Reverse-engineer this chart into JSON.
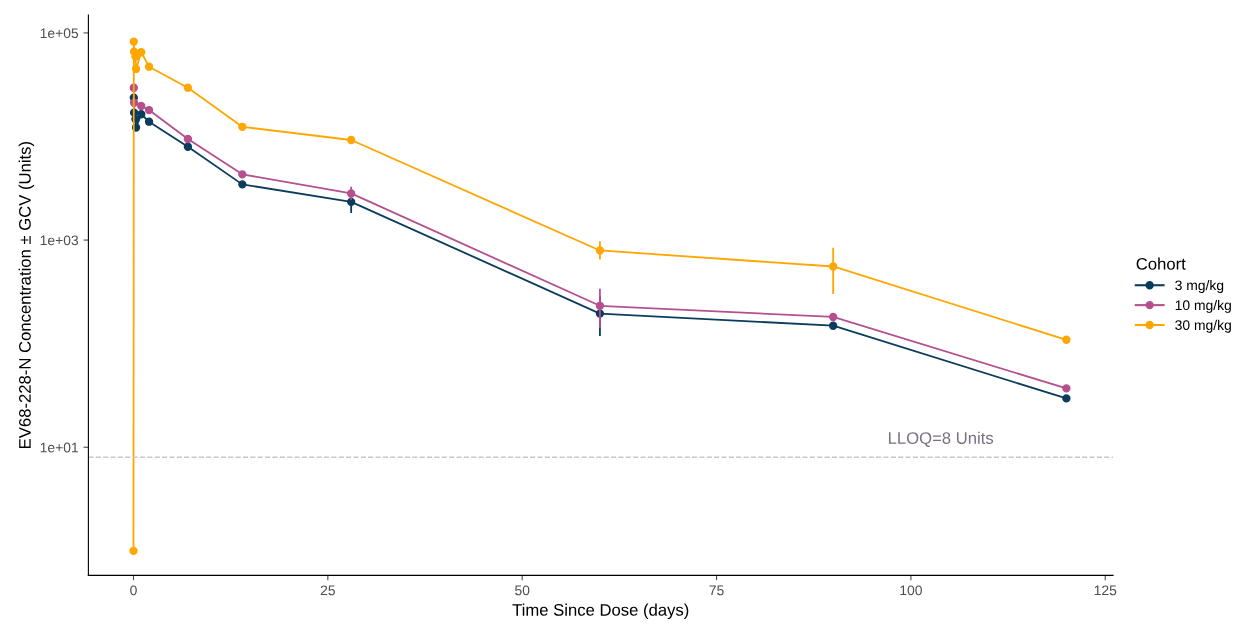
{
  "chart_data": {
    "type": "line",
    "xlabel": "Time Since Dose (days)",
    "ylabel": "EV68-228-N Concentration ± GCV (Units)",
    "legend_title": "Cohort",
    "legend": "right",
    "log": "y",
    "marker": "circle",
    "line_style": "solid",
    "grid": false,
    "xlim": [
      -5.8,
      126
    ],
    "xticks": [
      0,
      25,
      50,
      75,
      100,
      125
    ],
    "ylim": [
      0.58,
      149000
    ],
    "yticks": [
      {
        "value": 10,
        "label": "1e+01"
      },
      {
        "value": 1000,
        "label": "1e+03"
      },
      {
        "value": 100000,
        "label": "1e+05"
      }
    ],
    "series": [
      {
        "name": "3 mg/kg",
        "color": "#0b3c5d",
        "x": [
          0.04,
          0.08,
          0.25,
          0.33,
          1,
          2,
          7,
          14,
          28,
          60,
          90,
          120
        ],
        "values": [
          23700,
          17000,
          14700,
          12200,
          16400,
          13900,
          7960,
          3450,
          2340,
          195,
          149,
          29.6
        ],
        "errors": [
          null,
          null,
          null,
          null,
          null,
          null,
          null,
          null,
          [
            1860,
            2840
          ],
          [
            121,
            283
          ],
          null,
          null
        ]
      },
      {
        "name": "10 mg/kg",
        "color": "#b5508f",
        "x": [
          0.04,
          0.08,
          1,
          2,
          7,
          14,
          28,
          60,
          90,
          120
        ],
        "values": [
          29600,
          21200,
          19700,
          18000,
          9460,
          4310,
          2820,
          232,
          181,
          37
        ],
        "errors": [
          null,
          null,
          null,
          null,
          null,
          null,
          [
            2500,
            3200
          ],
          [
            145,
            332
          ],
          null,
          null
        ]
      },
      {
        "name": "30 mg/kg",
        "color": "#ffa600",
        "x": [
          0,
          0.04,
          0.08,
          0.25,
          0.33,
          1,
          2,
          7,
          14,
          28,
          60,
          90,
          120
        ],
        "values": [
          1.0,
          82400,
          65900,
          59100,
          44900,
          65100,
          47200,
          29600,
          12400,
          9250,
          794,
          556,
          109
        ],
        "errors": [
          null,
          null,
          null,
          null,
          null,
          null,
          null,
          null,
          null,
          null,
          [
            661,
            957
          ],
          [
            308,
            826
          ],
          null
        ]
      }
    ],
    "ref_lines": [
      {
        "axis": "y",
        "value": 8,
        "label": "LLOQ=8 Units",
        "color": "#c8c8c8",
        "line_style": "dashed"
      }
    ]
  }
}
